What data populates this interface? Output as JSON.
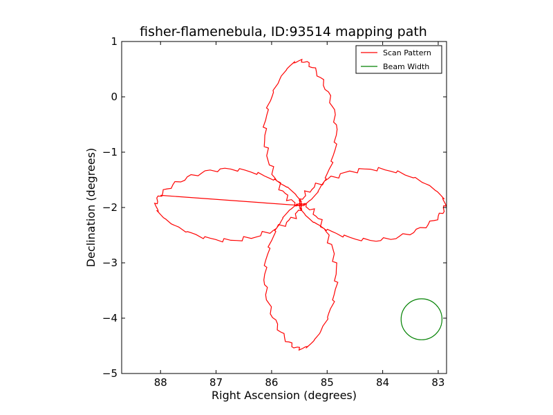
{
  "chart_data": {
    "type": "line",
    "title": "fisher-flamenebula, ID:93514 mapping path",
    "xlabel": "Right Ascension (degrees)",
    "ylabel": "Declination (degrees)",
    "xlim": [
      88.7,
      82.85
    ],
    "ylim": [
      -5,
      1
    ],
    "x_inverted": true,
    "xticks": [
      88,
      87,
      86,
      85,
      84,
      83
    ],
    "xtick_labels": [
      "88",
      "87",
      "86",
      "85",
      "84",
      "83"
    ],
    "yticks": [
      1,
      0,
      -1,
      -2,
      -3,
      -4,
      -5
    ],
    "ytick_labels": [
      "1",
      "0",
      "−1",
      "−2",
      "−3",
      "−4",
      "−5"
    ],
    "grid": false,
    "legend_position": "top-right",
    "series": [
      {
        "name": "Scan Pattern",
        "color": "#ff0000",
        "center": [
          85.48,
          -1.95
        ],
        "lobe_length": 2.6,
        "lobe_half_width": 0.56,
        "start": [
          88.0,
          -1.78
        ]
      },
      {
        "name": "Beam Width",
        "color": "#008000",
        "center": [
          83.3,
          -4.02
        ],
        "radius": 0.37
      }
    ]
  }
}
